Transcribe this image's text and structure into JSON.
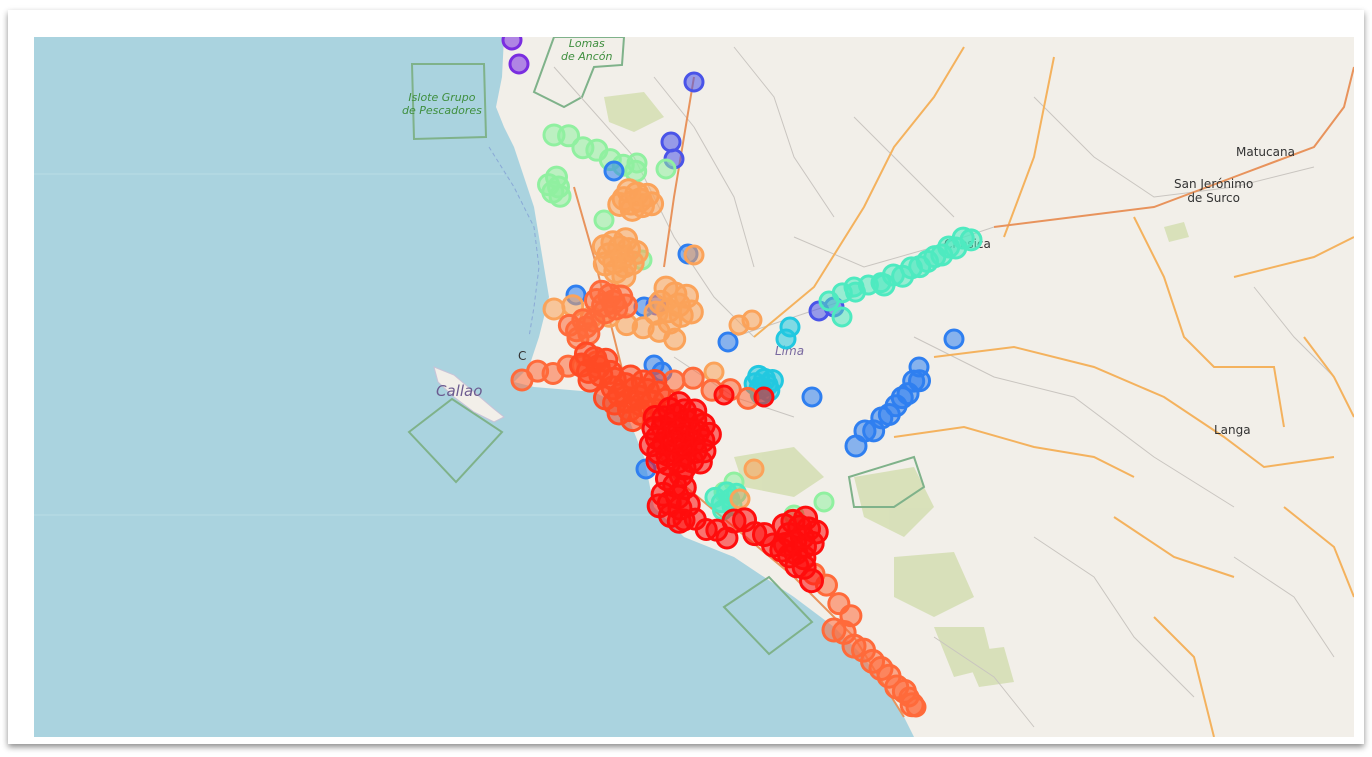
{
  "map": {
    "labels": {
      "lomas_de_ancon": "Lomas\nde Ancón",
      "islote": "Islote Grupo\nde Pescadores",
      "callao": "Callao",
      "lima": "Lima",
      "matucana": "Matucana",
      "san_jeronimo": "San Jerónimo\nde Surco",
      "langa": "Langa",
      "chosica": "Chosica",
      "callao_short": "C"
    },
    "marker_colors": {
      "red": "#ff0d0d",
      "red_orange": "#ff4a24",
      "orange_red": "#ff6a3a",
      "orange": "#fba35a",
      "light_green": "#90f0a0",
      "aquamarine": "#4eeac0",
      "cyan": "#22c8e0",
      "blue": "#2f7ff0",
      "indigo": "#4a54e8",
      "violet": "#7a2de0"
    }
  }
}
